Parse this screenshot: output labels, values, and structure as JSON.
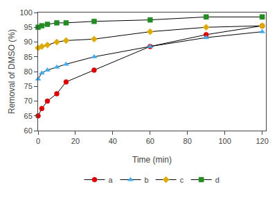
{
  "chart_data": {
    "type": "line",
    "xlabel": "Time (min)",
    "ylabel": "Removal of DMSO (%)",
    "x": [
      0,
      2,
      5,
      10,
      15,
      30,
      60,
      90,
      120
    ],
    "color": "#000000",
    "series": [
      {
        "name": "a",
        "color": "#dd0000",
        "marker": "circle",
        "values": [
          65,
          67.5,
          70,
          72.5,
          76.5,
          80.5,
          88.5,
          92.5,
          95.5
        ]
      },
      {
        "name": "b",
        "color": "#44aaee",
        "marker": "triangle",
        "values": [
          77.5,
          79.5,
          80.5,
          81.5,
          82.5,
          85,
          88.5,
          91.5,
          93.5
        ]
      },
      {
        "name": "c",
        "color": "#ddaa00",
        "marker": "diamond",
        "values": [
          88,
          88.5,
          89,
          90,
          90.5,
          91,
          93.5,
          95,
          95.5
        ]
      },
      {
        "name": "d",
        "color": "#228B22",
        "marker": "square",
        "values": [
          95,
          95.5,
          96,
          96.5,
          96.5,
          97,
          97.5,
          98.5,
          98.5
        ]
      }
    ],
    "xlim": [
      0,
      122
    ],
    "ylim": [
      60,
      100
    ],
    "xticks": [
      0,
      20,
      40,
      60,
      80,
      100,
      120
    ],
    "yticks": [
      60,
      65,
      70,
      75,
      80,
      85,
      90,
      95,
      100
    ],
    "grid": false,
    "legend": "bottom"
  }
}
